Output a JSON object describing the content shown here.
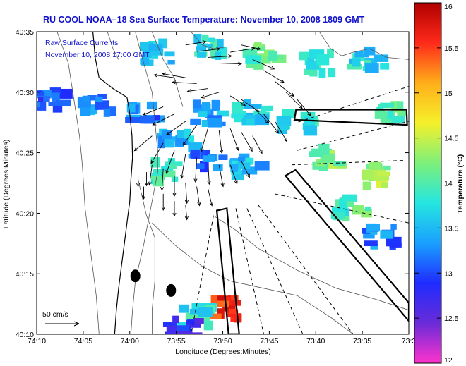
{
  "chart_data": {
    "type": "heatmap",
    "title": "RU COOL  NOAA–18  Sea Surface Temperature:  November 10, 2008 1809 GMT",
    "annotations": [
      "Raw Surface Currents",
      "November 10, 2008 17:00 GMT"
    ],
    "scale_label": "50 cm/s",
    "xlabel": "Longitude (Degrees:Minutes)",
    "ylabel": "Latitude (Degrees:Minutes)",
    "xticks": [
      {
        "v": -74.1667,
        "label": "74:10"
      },
      {
        "v": -74.0833,
        "label": "74:05"
      },
      {
        "v": -74.0,
        "label": "74:00"
      },
      {
        "v": -73.9167,
        "label": "73:55"
      },
      {
        "v": -73.8333,
        "label": "73:50"
      },
      {
        "v": -73.75,
        "label": "73:45"
      },
      {
        "v": -73.6667,
        "label": "73:40"
      },
      {
        "v": -73.5833,
        "label": "73:35"
      },
      {
        "v": -73.5,
        "label": "73:3"
      }
    ],
    "yticks": [
      {
        "v": 40.1667,
        "label": "40:10"
      },
      {
        "v": 40.25,
        "label": "40:15"
      },
      {
        "v": 40.3333,
        "label": "40:20"
      },
      {
        "v": 40.4167,
        "label": "40:25"
      },
      {
        "v": 40.5,
        "label": "40:30"
      },
      {
        "v": 40.5833,
        "label": "40:35"
      }
    ],
    "xlim": [
      -74.1667,
      -73.5
    ],
    "ylim": [
      40.1667,
      40.5833
    ],
    "colorbar": {
      "label": "Temperature (°C)",
      "range": [
        12,
        16
      ],
      "ticks": [
        "12",
        "12.5",
        "13",
        "13.5",
        "14",
        "14.5",
        "15",
        "15.5",
        "16"
      ],
      "colors": [
        "#ff33cc",
        "#6a2bd8",
        "#1f2cff",
        "#1aa0ff",
        "#25e6e0",
        "#7df07a",
        "#f5f02a",
        "#ffae1a",
        "#ff2a1a",
        "#b00000"
      ]
    },
    "sst_patches": [
      {
        "lon": -73.95,
        "lat": 40.555,
        "temp": 13.6
      },
      {
        "lon": -73.86,
        "lat": 40.56,
        "temp": 13.8
      },
      {
        "lon": -73.76,
        "lat": 40.55,
        "temp": 14.0
      },
      {
        "lon": -73.66,
        "lat": 40.54,
        "temp": 13.9
      },
      {
        "lon": -73.57,
        "lat": 40.545,
        "temp": 13.7
      },
      {
        "lon": -73.53,
        "lat": 40.47,
        "temp": 14.1
      },
      {
        "lon": -74.14,
        "lat": 40.49,
        "temp": 13.0
      },
      {
        "lon": -74.06,
        "lat": 40.485,
        "temp": 13.3
      },
      {
        "lon": -73.97,
        "lat": 40.47,
        "temp": 13.2
      },
      {
        "lon": -73.92,
        "lat": 40.44,
        "temp": 13.5
      },
      {
        "lon": -73.86,
        "lat": 40.47,
        "temp": 13.4
      },
      {
        "lon": -73.78,
        "lat": 40.47,
        "temp": 13.6
      },
      {
        "lon": -73.7,
        "lat": 40.46,
        "temp": 13.8
      },
      {
        "lon": -73.64,
        "lat": 40.41,
        "temp": 14.2
      },
      {
        "lon": -73.56,
        "lat": 40.385,
        "temp": 14.3
      },
      {
        "lon": -73.6,
        "lat": 40.34,
        "temp": 14.0
      },
      {
        "lon": -73.55,
        "lat": 40.3,
        "temp": 13.2
      },
      {
        "lon": -73.86,
        "lat": 40.41,
        "temp": 13.2
      },
      {
        "lon": -73.79,
        "lat": 40.4,
        "temp": 13.5
      },
      {
        "lon": -73.93,
        "lat": 40.39,
        "temp": 13.8
      },
      {
        "lon": -73.83,
        "lat": 40.2,
        "temp": 15.6
      },
      {
        "lon": -73.88,
        "lat": 40.19,
        "temp": 13.8
      },
      {
        "lon": -73.9,
        "lat": 40.175,
        "temp": 12.8
      }
    ],
    "coastline": [
      [
        -74.066,
        40.583
      ],
      [
        -74.062,
        40.548
      ],
      [
        -74.055,
        40.52
      ],
      [
        -74.03,
        40.505
      ],
      [
        -74.005,
        40.493
      ],
      [
        -74.002,
        40.48
      ],
      [
        -74.0,
        40.47
      ],
      [
        -73.996,
        40.44
      ],
      [
        -73.995,
        40.41
      ],
      [
        -73.998,
        40.38
      ],
      [
        -74.0,
        40.35
      ],
      [
        -74.005,
        40.32
      ],
      [
        -74.01,
        40.29
      ],
      [
        -74.015,
        40.26
      ],
      [
        -74.02,
        40.23
      ],
      [
        -74.024,
        40.2
      ],
      [
        -74.027,
        40.167
      ]
    ],
    "markers": [
      {
        "lon": -73.99,
        "lat": 40.247
      },
      {
        "lon": -73.926,
        "lat": 40.227
      }
    ],
    "radial_lines": [
      {
        "from": [
          -73.698,
          40.459
        ],
        "to": [
          -73.5,
          40.508
        ]
      },
      {
        "from": [
          -73.7,
          40.42
        ],
        "to": [
          -73.5,
          40.46
        ]
      },
      {
        "from": [
          -73.71,
          40.4
        ],
        "to": [
          -73.51,
          40.406
        ]
      },
      {
        "from": [
          -73.74,
          40.36
        ],
        "to": [
          -73.5,
          40.32
        ]
      },
      {
        "from": [
          -73.77,
          40.345
        ],
        "to": [
          -73.6,
          40.167
        ]
      },
      {
        "from": [
          -73.79,
          40.34
        ],
        "to": [
          -73.69,
          40.167
        ]
      },
      {
        "from": [
          -73.81,
          40.34
        ],
        "to": [
          -73.76,
          40.167
        ]
      },
      {
        "from": [
          -73.85,
          40.33
        ],
        "to": [
          -73.89,
          40.167
        ]
      }
    ],
    "polygons": [
      [
        [
          -73.702,
          40.476
        ],
        [
          -73.504,
          40.476
        ],
        [
          -73.503,
          40.455
        ],
        [
          -73.705,
          40.462
        ]
      ],
      [
        [
          -73.844,
          40.337
        ],
        [
          -73.826,
          40.34
        ],
        [
          -73.804,
          40.167
        ],
        [
          -73.823,
          40.167
        ]
      ],
      [
        [
          -73.721,
          40.385
        ],
        [
          -73.703,
          40.393
        ],
        [
          -73.5,
          40.21
        ],
        [
          -73.5,
          40.185
        ]
      ]
    ],
    "contours": [
      [
        [
          -74.13,
          40.583
        ],
        [
          -74.11,
          40.54
        ],
        [
          -74.1,
          40.49
        ],
        [
          -74.09,
          40.44
        ],
        [
          -74.085,
          40.4
        ],
        [
          -74.08,
          40.34
        ],
        [
          -74.07,
          40.28
        ],
        [
          -74.06,
          40.22
        ],
        [
          -74.055,
          40.167
        ]
      ],
      [
        [
          -73.99,
          40.583
        ],
        [
          -73.975,
          40.54
        ],
        [
          -73.96,
          40.5
        ],
        [
          -73.955,
          40.46
        ],
        [
          -73.95,
          40.42
        ],
        [
          -73.95,
          40.39
        ],
        [
          -73.96,
          40.35
        ],
        [
          -73.975,
          40.29
        ],
        [
          -73.99,
          40.24
        ],
        [
          -73.995,
          40.2
        ],
        [
          -73.998,
          40.167
        ]
      ],
      [
        [
          -73.96,
          40.583
        ],
        [
          -73.94,
          40.545
        ],
        [
          -73.92,
          40.52
        ],
        [
          -73.905,
          40.48
        ]
      ],
      [
        [
          -73.985,
          40.42
        ],
        [
          -73.985,
          40.38
        ],
        [
          -73.97,
          40.33
        ],
        [
          -73.955,
          40.3
        ],
        [
          -73.955,
          40.24
        ],
        [
          -73.96,
          40.2
        ],
        [
          -73.96,
          40.167
        ]
      ],
      [
        [
          -73.96,
          40.32
        ],
        [
          -73.92,
          40.29
        ],
        [
          -73.87,
          40.26
        ],
        [
          -73.82,
          40.24
        ],
        [
          -73.76,
          40.23
        ],
        [
          -73.7,
          40.22
        ],
        [
          -73.64,
          40.19
        ],
        [
          -73.6,
          40.167
        ]
      ],
      [
        [
          -73.85,
          40.33
        ],
        [
          -73.81,
          40.31
        ],
        [
          -73.77,
          40.285
        ],
        [
          -73.7,
          40.255
        ],
        [
          -73.63,
          40.23
        ],
        [
          -73.56,
          40.215
        ],
        [
          -73.5,
          40.2
        ]
      ],
      [
        [
          -73.89,
          40.583
        ],
        [
          -73.87,
          40.565
        ],
        [
          -73.85,
          40.56
        ],
        [
          -73.83,
          40.562
        ]
      ],
      [
        [
          -73.66,
          40.583
        ],
        [
          -73.64,
          40.56
        ],
        [
          -73.62,
          40.55
        ],
        [
          -73.6,
          40.555
        ],
        [
          -73.57,
          40.56
        ],
        [
          -73.54,
          40.548
        ],
        [
          -73.5,
          40.545
        ]
      ],
      [
        [
          -74.04,
          40.583
        ],
        [
          -74.03,
          40.56
        ],
        [
          -74.02,
          40.545
        ]
      ]
    ],
    "current_vectors": [
      {
        "lon": -73.9,
        "lat": 40.565,
        "u": 30,
        "v": 5
      },
      {
        "lon": -73.88,
        "lat": 40.556,
        "u": 34,
        "v": 4
      },
      {
        "lon": -73.86,
        "lat": 40.548,
        "u": 35,
        "v": 2
      },
      {
        "lon": -73.84,
        "lat": 40.54,
        "u": 33,
        "v": -1
      },
      {
        "lon": -73.82,
        "lat": 40.555,
        "u": 36,
        "v": 6
      },
      {
        "lon": -73.8,
        "lat": 40.565,
        "u": 28,
        "v": -6
      },
      {
        "lon": -73.78,
        "lat": 40.545,
        "u": 32,
        "v": -14
      },
      {
        "lon": -73.76,
        "lat": 40.53,
        "u": 30,
        "v": -18
      },
      {
        "lon": -73.74,
        "lat": 40.515,
        "u": 28,
        "v": -22
      },
      {
        "lon": -73.72,
        "lat": 40.5,
        "u": 24,
        "v": -24
      },
      {
        "lon": -73.7,
        "lat": 40.49,
        "u": 20,
        "v": -24
      },
      {
        "lon": -73.92,
        "lat": 40.52,
        "u": -30,
        "v": 4
      },
      {
        "lon": -73.9,
        "lat": 40.52,
        "u": -34,
        "v": 6
      },
      {
        "lon": -73.88,
        "lat": 40.512,
        "u": -36,
        "v": 2
      },
      {
        "lon": -73.86,
        "lat": 40.505,
        "u": -30,
        "v": -4
      },
      {
        "lon": -73.84,
        "lat": 40.5,
        "u": -26,
        "v": -8
      },
      {
        "lon": -73.82,
        "lat": 40.495,
        "u": 22,
        "v": -14
      },
      {
        "lon": -73.8,
        "lat": 40.49,
        "u": 26,
        "v": -18
      },
      {
        "lon": -73.78,
        "lat": 40.48,
        "u": 24,
        "v": -24
      },
      {
        "lon": -73.76,
        "lat": 40.47,
        "u": 22,
        "v": -28
      },
      {
        "lon": -73.74,
        "lat": 40.46,
        "u": 18,
        "v": -30
      },
      {
        "lon": -73.94,
        "lat": 40.48,
        "u": -30,
        "v": -12
      },
      {
        "lon": -73.92,
        "lat": 40.47,
        "u": -32,
        "v": -16
      },
      {
        "lon": -73.9,
        "lat": 40.46,
        "u": -28,
        "v": -20
      },
      {
        "lon": -73.88,
        "lat": 40.455,
        "u": -20,
        "v": -30
      },
      {
        "lon": -73.86,
        "lat": 40.45,
        "u": -10,
        "v": -34
      },
      {
        "lon": -73.84,
        "lat": 40.448,
        "u": 4,
        "v": -34
      },
      {
        "lon": -73.82,
        "lat": 40.45,
        "u": 12,
        "v": -32
      },
      {
        "lon": -73.8,
        "lat": 40.445,
        "u": 16,
        "v": -28
      },
      {
        "lon": -73.78,
        "lat": 40.44,
        "u": 14,
        "v": -26
      },
      {
        "lon": -73.96,
        "lat": 40.44,
        "u": -26,
        "v": -22
      },
      {
        "lon": -73.94,
        "lat": 40.43,
        "u": -18,
        "v": -30
      },
      {
        "lon": -73.92,
        "lat": 40.42,
        "u": -12,
        "v": -34
      },
      {
        "lon": -73.9,
        "lat": 40.415,
        "u": -6,
        "v": -36
      },
      {
        "lon": -73.88,
        "lat": 40.41,
        "u": -2,
        "v": -36
      },
      {
        "lon": -73.86,
        "lat": 40.405,
        "u": 2,
        "v": -34
      },
      {
        "lon": -73.84,
        "lat": 40.4,
        "u": 6,
        "v": -32
      },
      {
        "lon": -73.82,
        "lat": 40.4,
        "u": 10,
        "v": -28
      },
      {
        "lon": -73.8,
        "lat": 40.405,
        "u": 12,
        "v": -24
      },
      {
        "lon": -73.96,
        "lat": 40.4,
        "u": -4,
        "v": -30
      },
      {
        "lon": -73.94,
        "lat": 40.395,
        "u": -2,
        "v": -32
      },
      {
        "lon": -73.92,
        "lat": 40.385,
        "u": 0,
        "v": -30
      },
      {
        "lon": -73.9,
        "lat": 40.375,
        "u": 2,
        "v": -30
      },
      {
        "lon": -73.88,
        "lat": 40.37,
        "u": 4,
        "v": -28
      },
      {
        "lon": -73.86,
        "lat": 40.368,
        "u": 6,
        "v": -26
      },
      {
        "lon": -73.94,
        "lat": 40.36,
        "u": 0,
        "v": -24
      },
      {
        "lon": -73.92,
        "lat": 40.35,
        "u": 0,
        "v": -22
      },
      {
        "lon": -73.9,
        "lat": 40.345,
        "u": 2,
        "v": -22
      },
      {
        "lon": -73.97,
        "lat": 40.39,
        "u": 0,
        "v": -20
      },
      {
        "lon": -73.975,
        "lat": 40.37,
        "u": 0,
        "v": -18
      },
      {
        "lon": -73.985,
        "lat": 40.385,
        "u": 0,
        "v": -16
      }
    ]
  }
}
